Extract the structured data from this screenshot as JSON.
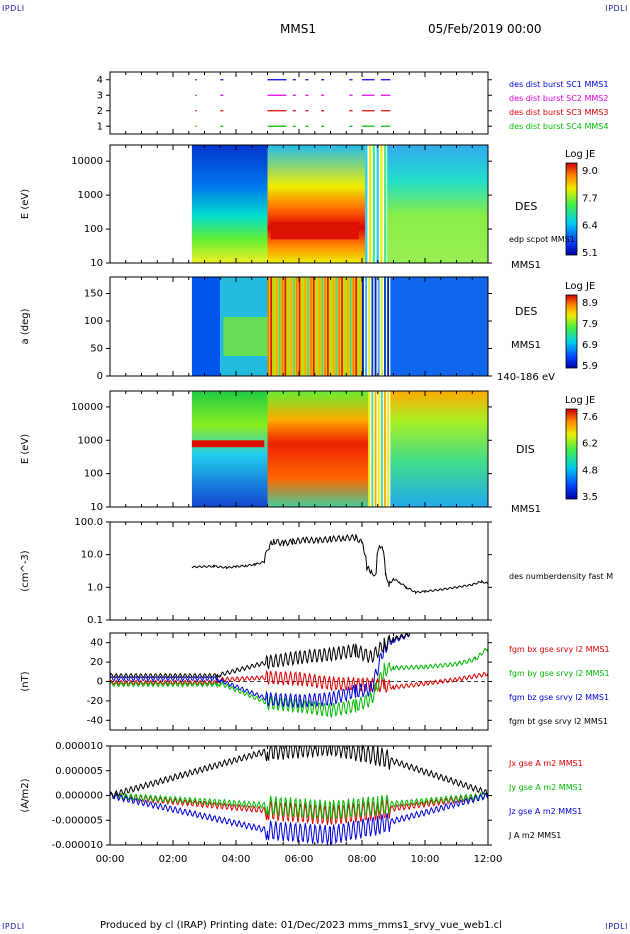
{
  "header": {
    "corner_label": "IPDLI",
    "spacecraft": "MMS1",
    "date": "05/Feb/2019 00:00"
  },
  "footer": {
    "text": "Produced by cl (IRAP)   Printing date: 01/Dec/2023   mms_mms1_srvy_vue_web1.cl"
  },
  "colors": {
    "red": "#dd0000",
    "blue": "#0000dd",
    "green": "#00bb00",
    "magenta": "#dd00dd",
    "black": "#000000"
  },
  "time_axis": {
    "tick_labels": [
      "00:00",
      "02:00",
      "04:00",
      "06:00",
      "08:00",
      "10:00",
      "12:00"
    ],
    "range_hours": [
      0,
      12
    ]
  },
  "chart_data": [
    {
      "type": "scatter",
      "panel": "burst-availability",
      "y_ticks": [
        "1",
        "2",
        "3",
        "4"
      ],
      "ylim": [
        0.5,
        4.5
      ],
      "legend": [
        {
          "label": "des dist burst SC1 MMS1",
          "color": "#0000dd"
        },
        {
          "label": "des dist burst SC2 MMS2",
          "color": "#dd00dd"
        },
        {
          "label": "des dist burst SC3 MMS3",
          "color": "#dd0000"
        },
        {
          "label": "des dist burst SC4 MMS4",
          "color": "#00bb00"
        }
      ],
      "segments_hours": [
        [
          2.7,
          2.75
        ],
        [
          3.5,
          3.6
        ],
        [
          5.0,
          5.6
        ],
        [
          5.8,
          5.9
        ],
        [
          6.2,
          6.3
        ],
        [
          6.7,
          6.8
        ],
        [
          7.6,
          7.7
        ],
        [
          8.0,
          8.4
        ],
        [
          8.6,
          8.9
        ]
      ]
    },
    {
      "type": "heatmap",
      "panel": "des-energy-spectrogram",
      "ylabel": "E (eV)",
      "y_scale": "log",
      "ylim": [
        10,
        30000
      ],
      "y_tick_labels": [
        "10",
        "100",
        "1000",
        "10000"
      ],
      "data_start_hour": 2.6,
      "right_labels": [
        "DES",
        "edp scpot MMS1",
        "MMS1"
      ],
      "colorbar": {
        "title": "Log JE",
        "ticks": [
          "9.0",
          "7.7",
          "6.4",
          "5.1"
        ]
      }
    },
    {
      "type": "heatmap",
      "panel": "des-pitch-angle",
      "ylabel": "a (deg)",
      "ylim": [
        0,
        180
      ],
      "y_tick_labels": [
        "0",
        "50",
        "100",
        "150"
      ],
      "data_start_hour": 2.6,
      "right_labels": [
        "DES",
        "MMS1",
        "140-186 eV"
      ],
      "colorbar": {
        "title": "Log JE",
        "ticks": [
          "8.9",
          "7.9",
          "6.9",
          "5.9"
        ]
      }
    },
    {
      "type": "heatmap",
      "panel": "dis-energy-spectrogram",
      "ylabel": "E (eV)",
      "y_scale": "log",
      "ylim": [
        10,
        30000
      ],
      "y_tick_labels": [
        "10",
        "100",
        "1000",
        "10000"
      ],
      "data_start_hour": 2.6,
      "right_labels": [
        "DIS",
        "MMS1"
      ],
      "colorbar": {
        "title": "Log JE",
        "ticks": [
          "7.6",
          "6.2",
          "4.8",
          "3.5"
        ]
      }
    },
    {
      "type": "line",
      "panel": "density",
      "ylabel": "(cm^-3)",
      "y_scale": "log",
      "ylim": [
        0.1,
        100
      ],
      "y_tick_labels": [
        "0.1",
        "1.0",
        "10.0",
        "100.0"
      ],
      "series": [
        {
          "name": "des numberdensity fast M",
          "color": "#000000",
          "points": [
            [
              2.6,
              4.2
            ],
            [
              3.3,
              4.4
            ],
            [
              3.7,
              4.0
            ],
            [
              4.0,
              4.3
            ],
            [
              4.3,
              4.6
            ],
            [
              4.6,
              5.0
            ],
            [
              4.9,
              6.0
            ],
            [
              5.05,
              18
            ],
            [
              5.2,
              26
            ],
            [
              5.5,
              22
            ],
            [
              5.8,
              25
            ],
            [
              6.2,
              28
            ],
            [
              6.6,
              27
            ],
            [
              7.0,
              30
            ],
            [
              7.4,
              32
            ],
            [
              7.8,
              34
            ],
            [
              8.0,
              22
            ],
            [
              8.15,
              4
            ],
            [
              8.3,
              3
            ],
            [
              8.45,
              2.5
            ],
            [
              8.55,
              22
            ],
            [
              8.65,
              14
            ],
            [
              8.75,
              2.8
            ],
            [
              8.85,
              1.1
            ],
            [
              9.0,
              1.8
            ],
            [
              9.2,
              1.4
            ],
            [
              9.4,
              1.0
            ],
            [
              9.7,
              0.7
            ],
            [
              10.0,
              0.75
            ],
            [
              10.5,
              0.85
            ],
            [
              11.0,
              1.0
            ],
            [
              11.5,
              1.2
            ],
            [
              11.8,
              1.5
            ],
            [
              12.0,
              1.3
            ]
          ]
        }
      ]
    },
    {
      "type": "line",
      "panel": "magnetic-field",
      "ylabel": "(nT)",
      "ylim": [
        -50,
        50
      ],
      "y_tick_labels": [
        "-40",
        "-20",
        "0",
        "20",
        "40"
      ],
      "series": [
        {
          "name": "fgm bx gse srvy l2 MMS1",
          "color": "#dd0000",
          "points": [
            [
              0,
              -1
            ],
            [
              3.4,
              -1
            ],
            [
              3.5,
              2
            ],
            [
              5.0,
              4
            ],
            [
              6.0,
              3
            ],
            [
              7.0,
              -2
            ],
            [
              8.0,
              -3
            ],
            [
              8.7,
              -4
            ],
            [
              9.0,
              -6
            ],
            [
              10.0,
              -2
            ],
            [
              11.0,
              2
            ],
            [
              12.0,
              8
            ]
          ]
        },
        {
          "name": "fgm by gse srvy l2 MMS1",
          "color": "#00bb00",
          "points": [
            [
              0,
              -3
            ],
            [
              3.4,
              -3
            ],
            [
              3.5,
              -2
            ],
            [
              5.0,
              -22
            ],
            [
              6.0,
              -25
            ],
            [
              7.0,
              -30
            ],
            [
              7.8,
              -25
            ],
            [
              8.3,
              -18
            ],
            [
              8.7,
              12
            ],
            [
              9.0,
              14
            ],
            [
              10.0,
              15
            ],
            [
              11.0,
              18
            ],
            [
              11.6,
              23
            ],
            [
              12.0,
              35
            ]
          ]
        },
        {
          "name": "fgm bz gse srvy l2 MMS1",
          "color": "#0000dd",
          "points": [
            [
              0,
              3
            ],
            [
              3.4,
              3
            ],
            [
              3.5,
              1
            ],
            [
              5.0,
              -18
            ],
            [
              6.0,
              -20
            ],
            [
              7.0,
              -18
            ],
            [
              7.8,
              -10
            ],
            [
              8.3,
              -8
            ],
            [
              8.7,
              35
            ],
            [
              9.0,
              42
            ],
            [
              9.5,
              48
            ]
          ]
        },
        {
          "name": "fgm bt gse srvy l2 MMS1",
          "color": "#000000",
          "points": [
            [
              0,
              6
            ],
            [
              3.4,
              6
            ],
            [
              3.5,
              7
            ],
            [
              5.0,
              20
            ],
            [
              6.0,
              25
            ],
            [
              7.0,
              28
            ],
            [
              7.8,
              32
            ],
            [
              8.3,
              25
            ],
            [
              8.7,
              38
            ],
            [
              9.0,
              44
            ],
            [
              9.5,
              49
            ]
          ]
        }
      ]
    },
    {
      "type": "line",
      "panel": "current-density",
      "ylabel": "(A/m2)",
      "ylim": [
        -1e-05,
        1e-05
      ],
      "y_tick_labels": [
        "0.000010",
        "0.000005",
        "0.000000",
        "-0.000005",
        "-0.000010"
      ],
      "series": [
        {
          "name": "Jx gse A m2 MMS1",
          "color": "#dd0000",
          "points": [
            [
              0,
              0
            ],
            [
              5.0,
              -3e-06
            ],
            [
              7.0,
              -4e-06
            ],
            [
              8.5,
              -3e-06
            ],
            [
              12,
              0
            ]
          ]
        },
        {
          "name": "Jy gse A m2 MMS1",
          "color": "#00bb00",
          "points": [
            [
              0,
              0
            ],
            [
              5.0,
              -2e-06
            ],
            [
              7.0,
              -3e-06
            ],
            [
              8.5,
              -2e-06
            ],
            [
              12,
              0
            ]
          ]
        },
        {
          "name": "Jz gse A m2 MMS1",
          "color": "#0000dd",
          "points": [
            [
              0,
              0
            ],
            [
              5.0,
              -7e-06
            ],
            [
              7.0,
              -8e-06
            ],
            [
              8.5,
              -6e-06
            ],
            [
              12,
              0
            ]
          ]
        },
        {
          "name": "J A m2 MMS1",
          "color": "#000000",
          "points": [
            [
              0,
              0
            ],
            [
              5.0,
              9e-06
            ],
            [
              7.0,
              1e-05
            ],
            [
              8.5,
              8e-06
            ],
            [
              12,
              5e-07
            ]
          ]
        }
      ]
    }
  ]
}
